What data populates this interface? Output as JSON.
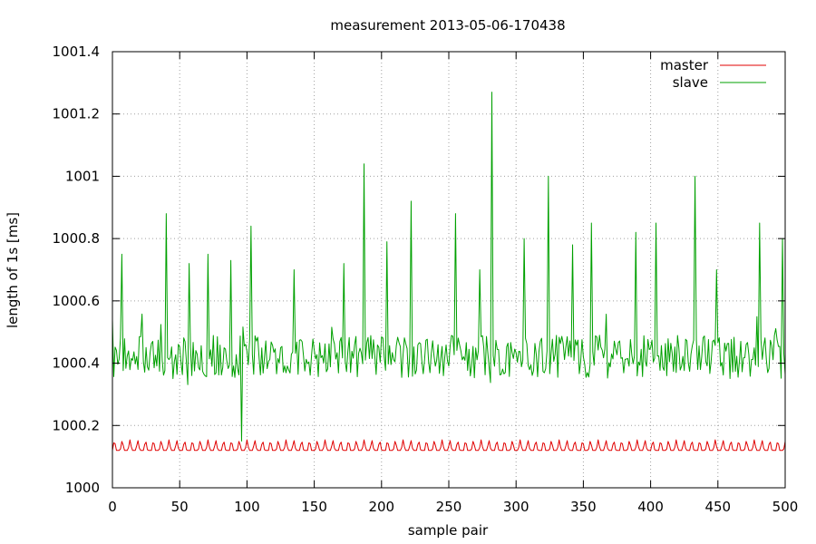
{
  "chart_data": {
    "type": "line",
    "title": "measurement 2013-05-06-170438",
    "xlabel": "sample pair",
    "ylabel": "length of 1s [ms]",
    "xlim": [
      0,
      500
    ],
    "ylim": [
      1000,
      1001.4
    ],
    "xticks": [
      0,
      50,
      100,
      150,
      200,
      250,
      300,
      350,
      400,
      450,
      500
    ],
    "yticks": [
      1000,
      1000.2,
      1000.4,
      1000.6,
      1000.8,
      1001,
      1001.2,
      1001.4
    ],
    "xtick_labels": [
      "0",
      "50",
      "100",
      "150",
      "200",
      "250",
      "300",
      "350",
      "400",
      "450",
      "500"
    ],
    "ytick_labels": [
      "1000",
      "1000.2",
      "1000.4",
      "1000.6",
      "1000.8",
      "1001",
      "1001.2",
      "1001.4"
    ],
    "grid": true,
    "legend_position": "top-right",
    "series": [
      {
        "name": "master",
        "color": "#e00000",
        "pattern": "periodic",
        "period": 5.8,
        "base": 1000.12,
        "peak": 1000.155,
        "x_start": 0,
        "x_end": 500
      },
      {
        "name": "slave",
        "color": "#00a000",
        "pattern": "noisy",
        "baseline": 1000.42,
        "noise_amplitude": 0.07,
        "x_start": 0,
        "x_end": 500,
        "peaks": [
          [
            7,
            1000.75
          ],
          [
            40,
            1000.88
          ],
          [
            57,
            1000.72
          ],
          [
            71,
            1000.75
          ],
          [
            88,
            1000.73
          ],
          [
            96,
            1000.15
          ],
          [
            103,
            1000.84
          ],
          [
            135,
            1000.7
          ],
          [
            172,
            1000.72
          ],
          [
            187,
            1001.04
          ],
          [
            204,
            1000.79
          ],
          [
            222,
            1000.92
          ],
          [
            255,
            1000.88
          ],
          [
            273,
            1000.7
          ],
          [
            282,
            1001.27
          ],
          [
            306,
            1000.8
          ],
          [
            324,
            1001.0
          ],
          [
            342,
            1000.78
          ],
          [
            356,
            1000.85
          ],
          [
            389,
            1000.82
          ],
          [
            404,
            1000.85
          ],
          [
            433,
            1001.0
          ],
          [
            449,
            1000.7
          ],
          [
            481,
            1000.85
          ],
          [
            498,
            1000.8
          ]
        ]
      }
    ]
  }
}
